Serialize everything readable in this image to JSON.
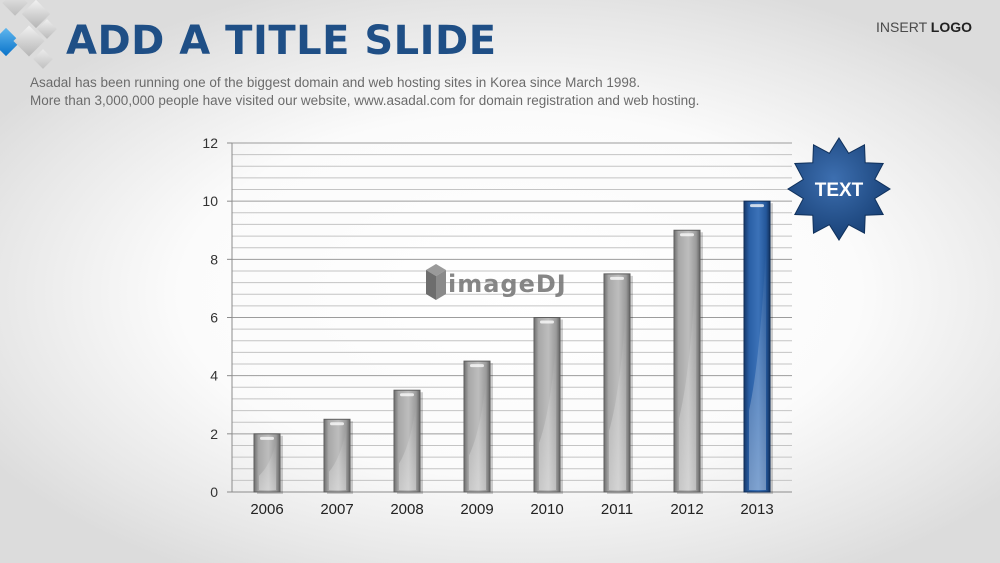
{
  "slide": {
    "title": "ADD A TITLE SLIDE",
    "insert_logo": {
      "prefix": "INSERT ",
      "bold": "LOGO"
    },
    "subtitle_lines": [
      "Asadal has been running one of the biggest domain and web hosting sites in Korea since March 1998.",
      "More than 3,000,000 people have visited our website,  www.asadal.com for domain registration and web hosting."
    ],
    "badge_text": "TEXT",
    "watermark_text": "imageDJ"
  },
  "colors": {
    "title": "#1f4f86",
    "bar_gray": "#9a9a9a",
    "bar_highlight": "#1e4f8e",
    "badge": "#1f4f86"
  },
  "chart_data": {
    "type": "bar",
    "categories": [
      "2006",
      "2007",
      "2008",
      "2009",
      "2010",
      "2011",
      "2012",
      "2013"
    ],
    "values": [
      2,
      2.5,
      3.5,
      4.5,
      6,
      7.5,
      9,
      10
    ],
    "highlight_index": 7,
    "ylim": [
      0,
      12
    ],
    "yticks": [
      0,
      2,
      4,
      6,
      8,
      10,
      12
    ],
    "title": "",
    "xlabel": "",
    "ylabel": "",
    "grid": true,
    "legend": "none"
  }
}
